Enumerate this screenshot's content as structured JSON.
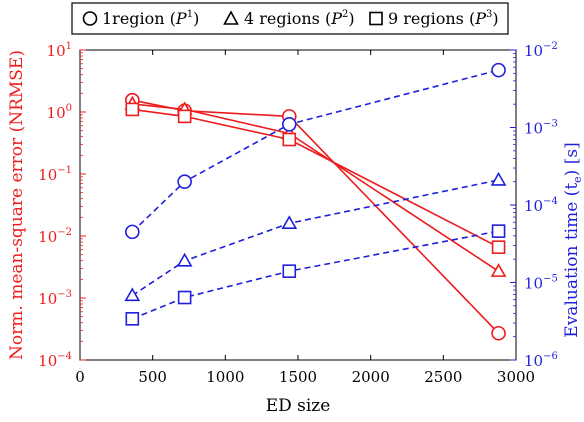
{
  "chart_data": {
    "type": "line",
    "xlabel": "ED size",
    "ylabel_left": "Norm. mean-square error (NRMSE)",
    "ylabel_right": "Evaluation time",
    "ylabel_right_symbol": "(t",
    "ylabel_right_subscript": "e",
    "ylabel_right_unit": ") [s]",
    "xlim": [
      0,
      3000
    ],
    "x_ticks": [
      "0",
      "500",
      "1000",
      "1500",
      "2000",
      "2500",
      "3000"
    ],
    "y_left_scale": "log",
    "y_left_lim": [
      0.0001,
      10
    ],
    "y_left_ticks": [
      {
        "base": "10",
        "exp": "1",
        "value": 10
      },
      {
        "base": "10",
        "exp": "0",
        "value": 1
      },
      {
        "base": "10",
        "exp": "−1",
        "value": 0.1
      },
      {
        "base": "10",
        "exp": "−2",
        "value": 0.01
      },
      {
        "base": "10",
        "exp": "−3",
        "value": 0.001
      },
      {
        "base": "10",
        "exp": "−4",
        "value": 0.0001
      }
    ],
    "y_right_scale": "log",
    "y_right_lim": [
      1e-06,
      0.01
    ],
    "y_right_ticks": [
      {
        "base": "10",
        "exp": "−2",
        "value": 0.01
      },
      {
        "base": "10",
        "exp": "−3",
        "value": 0.001
      },
      {
        "base": "10",
        "exp": "−4",
        "value": 0.0001
      },
      {
        "base": "10",
        "exp": "−5",
        "value": 1e-05
      },
      {
        "base": "10",
        "exp": "−6",
        "value": 1e-06
      }
    ],
    "grid": false,
    "legend_position": "top, outside",
    "legend": [
      {
        "marker": "circle",
        "text": "1region (",
        "script": "P",
        "sup": "1",
        "close": ")"
      },
      {
        "marker": "triangle",
        "text": "4 regions (",
        "script": "P",
        "sup": "2",
        "close": ")"
      },
      {
        "marker": "square",
        "text": "9 regions (",
        "script": "P",
        "sup": "3",
        "close": ")"
      }
    ],
    "colors": {
      "error": "#ee1c1c",
      "time": "#1f1fdd"
    },
    "series": [
      {
        "metric": "NRMSE",
        "axis": "left",
        "marker": "circle",
        "style": "solid",
        "x": [
          360,
          720,
          1440,
          2880
        ],
        "y": [
          1.55,
          1.05,
          0.85,
          0.00027
        ]
      },
      {
        "metric": "NRMSE",
        "axis": "left",
        "marker": "triangle",
        "style": "solid",
        "x": [
          360,
          720,
          1440,
          2880
        ],
        "y": [
          1.35,
          1.1,
          0.45,
          0.0027
        ]
      },
      {
        "metric": "NRMSE",
        "axis": "left",
        "marker": "square",
        "style": "solid",
        "x": [
          360,
          720,
          1440,
          2880
        ],
        "y": [
          1.1,
          0.85,
          0.36,
          0.0066
        ]
      },
      {
        "metric": "Evaluation time",
        "axis": "right",
        "marker": "circle",
        "style": "dashed",
        "x": [
          360,
          720,
          1440,
          2880
        ],
        "y": [
          4.5e-05,
          0.0002,
          0.0011,
          0.0055
        ]
      },
      {
        "metric": "Evaluation time",
        "axis": "right",
        "marker": "triangle",
        "style": "dashed",
        "x": [
          360,
          720,
          1440,
          2880
        ],
        "y": [
          6.8e-06,
          1.9e-05,
          5.8e-05,
          0.00021
        ]
      },
      {
        "metric": "Evaluation time",
        "axis": "right",
        "marker": "square",
        "style": "dashed",
        "x": [
          360,
          720,
          1440,
          2880
        ],
        "y": [
          3.4e-06,
          6.4e-06,
          1.4e-05,
          4.6e-05
        ]
      }
    ]
  }
}
